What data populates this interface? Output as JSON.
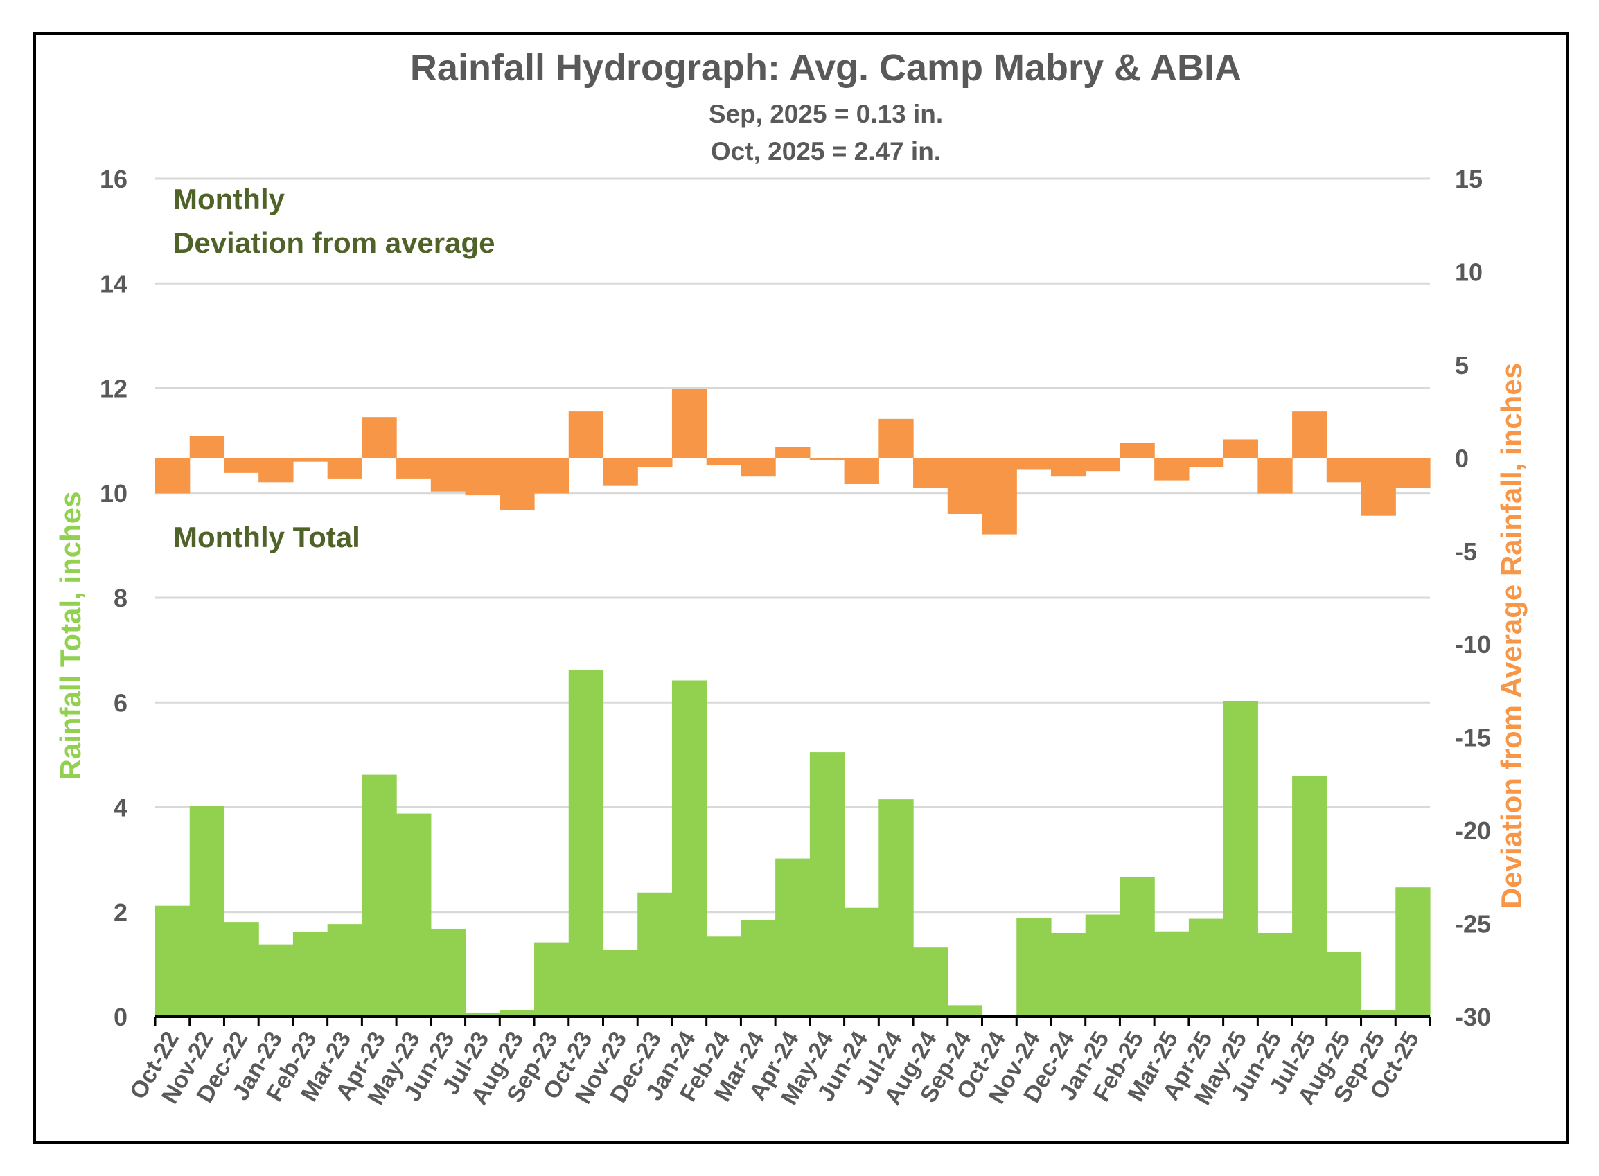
{
  "chart_data": {
    "type": "bar",
    "title": "Rainfall Hydrograph: Avg. Camp Mabry & ABIA",
    "subtitle_lines": [
      "Sep, 2025 = 0.13 in.",
      "Oct, 2025 = 2.47 in."
    ],
    "ylabel_left": "Rainfall Total, inches",
    "ylabel_right": "Deviation from Average Rainfall, inches",
    "ylim_left": [
      0,
      16
    ],
    "yticks_left": [
      "0",
      "2",
      "4",
      "6",
      "8",
      "10",
      "12",
      "14",
      "16"
    ],
    "ylim_right": [
      -30,
      15
    ],
    "yticks_right": [
      "-30",
      "-25",
      "-20",
      "-15",
      "-10",
      "-5",
      "0",
      "5",
      "10",
      "15"
    ],
    "annotations": {
      "deviation_line1": "Monthly",
      "deviation_line2": "Deviation from average",
      "total": "Monthly Total"
    },
    "grid": true,
    "colors": {
      "total": "#92d050",
      "deviation": "#f79646",
      "title": "#595959",
      "annotation": "#4f6228"
    },
    "categories": [
      "Oct-22",
      "Nov-22",
      "Dec-22",
      "Jan-23",
      "Feb-23",
      "Mar-23",
      "Apr-23",
      "May-23",
      "Jun-23",
      "Jul-23",
      "Aug-23",
      "Sep-23",
      "Oct-23",
      "Nov-23",
      "Dec-23",
      "Jan-24",
      "Feb-24",
      "Mar-24",
      "Apr-24",
      "May-24",
      "Jun-24",
      "Jul-24",
      "Aug-24",
      "Sep-24",
      "Oct-24",
      "Nov-24",
      "Dec-24",
      "Jan-25",
      "Feb-25",
      "Mar-25",
      "Apr-25",
      "May-25",
      "Jun-25",
      "Jul-25",
      "Aug-25",
      "Sep-25",
      "Oct-25"
    ],
    "series": [
      {
        "name": "Monthly Total",
        "axis": "left",
        "values": [
          2.12,
          4.02,
          1.81,
          1.38,
          1.62,
          1.77,
          4.62,
          3.88,
          1.68,
          0.08,
          0.12,
          1.42,
          6.62,
          1.28,
          2.37,
          6.42,
          1.53,
          1.85,
          3.02,
          5.05,
          2.08,
          4.15,
          1.32,
          0.22,
          0.0,
          1.88,
          1.6,
          1.95,
          2.67,
          1.63,
          1.87,
          6.03,
          1.6,
          4.6,
          1.23,
          0.13,
          2.47
        ]
      },
      {
        "name": "Deviation from average",
        "axis": "right",
        "values": [
          -1.9,
          1.2,
          -0.8,
          -1.3,
          -0.2,
          -1.1,
          2.2,
          -1.1,
          -1.8,
          -2.0,
          -2.8,
          -1.9,
          2.5,
          -1.5,
          -0.5,
          3.7,
          -0.4,
          -1.0,
          0.6,
          -0.1,
          -1.4,
          2.1,
          -1.6,
          -3.0,
          -4.1,
          -0.6,
          -1.0,
          -0.7,
          0.8,
          -1.2,
          -0.5,
          1.0,
          -1.9,
          2.5,
          -1.3,
          -3.1,
          -1.6
        ]
      }
    ]
  }
}
